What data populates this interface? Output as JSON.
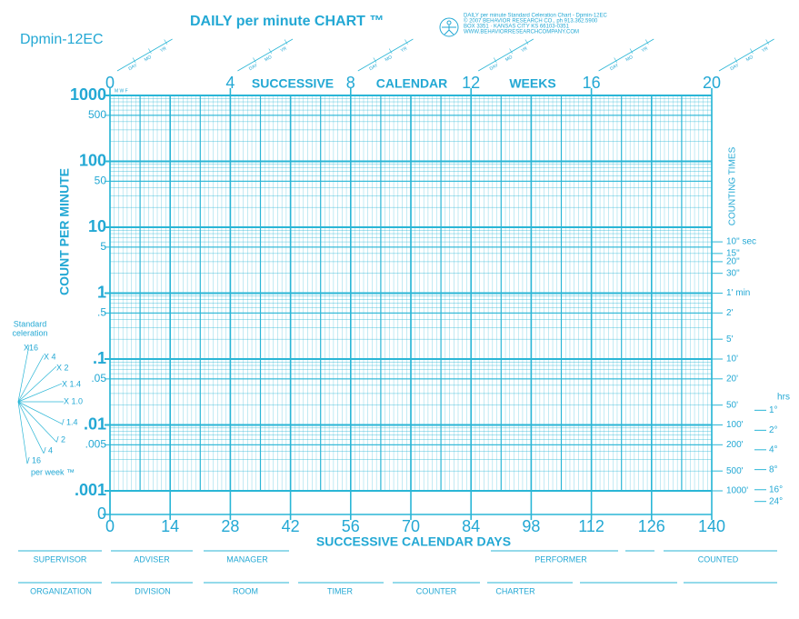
{
  "chart_data": {
    "type": "line",
    "title": "DAILY per minute CHART ™",
    "code": "Dpmin-12EC",
    "publisher": [
      "DAILY per minute Standard Celeration Chart - Dpmin-12EC",
      "© 2007 BEHAVIOR RESEARCH CO., ph 913.362.5900",
      "BOX 3351 · KANSAS CITY KS 66103-0351",
      "WWW.BEHAVIORRESEARCHCOMPANY.COM"
    ],
    "xlabel": "SUCCESSIVE CALENDAR DAYS",
    "ylabel": "COUNT PER MINUTE",
    "x2label": [
      "SUCCESSIVE",
      "CALENDAR",
      "WEEKS"
    ],
    "y2label": "COUNTING TIMES",
    "xlim": [
      0,
      140
    ],
    "xticks": [
      0,
      14,
      28,
      42,
      56,
      70,
      84,
      98,
      112,
      126,
      140
    ],
    "x2lim": [
      0,
      20
    ],
    "x2ticks": [
      0,
      4,
      8,
      12,
      16,
      20
    ],
    "ylim": [
      0.001,
      1000
    ],
    "log_y": true,
    "grid": true,
    "color": "#2ab6d6",
    "yticks": [
      1000,
      500,
      100,
      50,
      10,
      5,
      1,
      {
        "value": 0.5,
        "label": ".5"
      },
      {
        "value": 0.1,
        "label": ".1"
      },
      {
        "value": 0.05,
        "label": ".05"
      },
      {
        "value": 0.01,
        "label": ".01"
      },
      {
        "value": 0.005,
        "label": ".005"
      },
      {
        "value": 0.001,
        "label": ".001"
      },
      0
    ],
    "counting_times": [
      {
        "value": 6,
        "label": "10\" sec"
      },
      {
        "value": 4,
        "label": "15\""
      },
      {
        "value": 3,
        "label": "20\""
      },
      {
        "value": 2,
        "label": "30\""
      },
      {
        "value": 1,
        "label": "1' min"
      },
      {
        "value": 0.5,
        "label": "2'"
      },
      {
        "value": 0.2,
        "label": "5'"
      },
      {
        "value": 0.1,
        "label": "10'"
      },
      {
        "value": 0.05,
        "label": "20'"
      },
      {
        "value": 0.02,
        "label": "50'"
      },
      {
        "value": 0.01,
        "label": "100'"
      },
      {
        "value": 0.005,
        "label": "200'"
      },
      {
        "value": 0.002,
        "label": "500'"
      },
      {
        "value": 0.001,
        "label": "1000'"
      }
    ],
    "hours_label": "hrs",
    "counting_hours": [
      {
        "value": 0.0167,
        "label": "1°"
      },
      {
        "value": 0.0083,
        "label": "2°"
      },
      {
        "value": 0.0042,
        "label": "4°"
      },
      {
        "value": 0.0021,
        "label": "8°"
      },
      {
        "value": 0.00104,
        "label": "16°"
      },
      {
        "value": 0.00069,
        "label": "24°"
      }
    ],
    "date_fields": [
      "DAY",
      "MO",
      "YR"
    ],
    "weekday_marks": "M W F",
    "celeration": {
      "title": [
        "Standard",
        "celeration"
      ],
      "footer": "per week ™",
      "labels": [
        "X16",
        "X 4",
        "X 2",
        "X 1.4",
        "X 1.0",
        "/ 1.4",
        "/ 2",
        "/ 4",
        "/ 16"
      ]
    },
    "form_fields": {
      "row1": [
        "SUPERVISOR",
        "ADVISER",
        "MANAGER",
        "PERFORMER",
        "COUNTED"
      ],
      "row2": [
        "ORGANIZATION",
        "DIVISION",
        "ROOM",
        "TIMER",
        "COUNTER",
        "CHARTER"
      ]
    }
  }
}
